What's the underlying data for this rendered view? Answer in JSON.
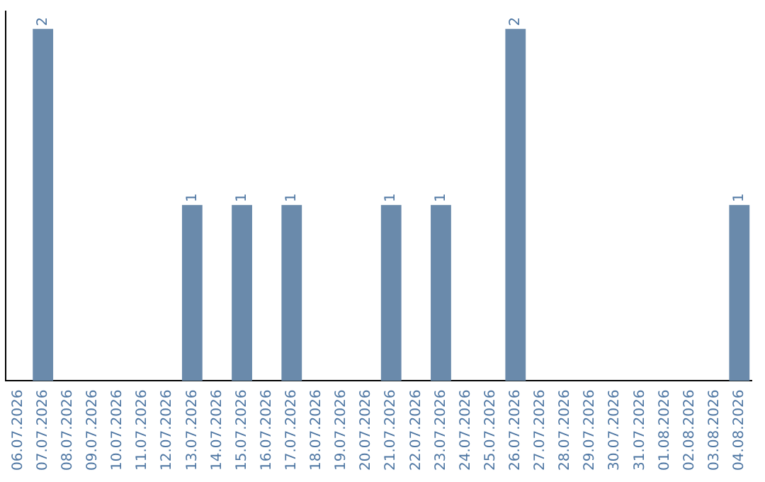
{
  "chart_data": {
    "type": "bar",
    "categories": [
      "06.07.2026",
      "07.07.2026",
      "08.07.2026",
      "09.07.2026",
      "10.07.2026",
      "11.07.2026",
      "12.07.2026",
      "13.07.2026",
      "14.07.2026",
      "15.07.2026",
      "16.07.2026",
      "17.07.2026",
      "18.07.2026",
      "19.07.2026",
      "20.07.2026",
      "21.07.2026",
      "22.07.2026",
      "23.07.2026",
      "24.07.2026",
      "25.07.2026",
      "26.07.2026",
      "27.07.2026",
      "28.07.2026",
      "29.07.2026",
      "30.07.2026",
      "31.07.2026",
      "01.08.2026",
      "02.08.2026",
      "03.08.2026",
      "04.08.2026"
    ],
    "values": [
      0,
      2,
      0,
      0,
      0,
      0,
      0,
      1,
      0,
      1,
      0,
      1,
      0,
      0,
      0,
      1,
      0,
      1,
      0,
      0,
      2,
      0,
      0,
      0,
      0,
      0,
      0,
      0,
      0,
      1
    ],
    "value_labels": [
      null,
      "2",
      null,
      null,
      null,
      null,
      null,
      "1",
      null,
      "1",
      null,
      "1",
      null,
      null,
      null,
      "1",
      null,
      "1",
      null,
      null,
      "2",
      null,
      null,
      null,
      null,
      null,
      null,
      null,
      null,
      "1"
    ],
    "color": "#6a8aab",
    "ylim": [
      0,
      2.1
    ],
    "tick_labels": "x",
    "grid": false,
    "legend": false
  }
}
